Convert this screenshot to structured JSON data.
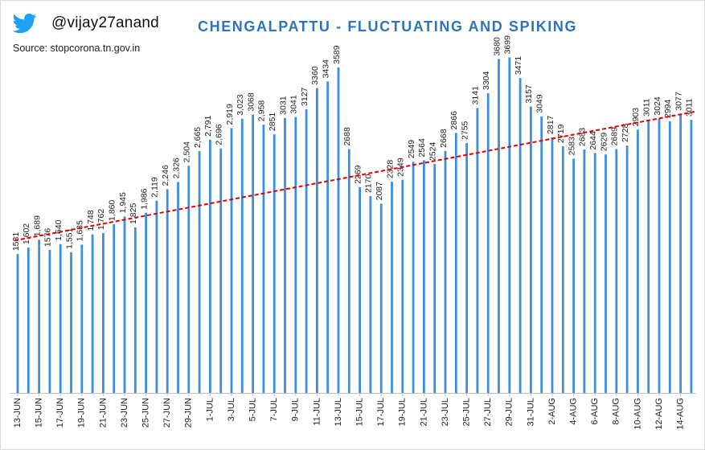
{
  "header": {
    "handle": "@vijay27anand",
    "source": "Source: stopcorona.tn.gov.in",
    "logo_icon": "twitter-bird-icon"
  },
  "colors": {
    "bar": "#3d8fdc",
    "trend": "#e00000",
    "title": "#2e75b6"
  },
  "chart_data": {
    "type": "bar",
    "title": "CHENGALPATTU - FLUCTUATING AND SPIKING",
    "xlabel": "",
    "ylabel": "",
    "ylim": [
      0,
      3800
    ],
    "grid": false,
    "legend": "none",
    "tick_labels": [
      "13-JUN",
      "15-JUN",
      "17-JUN",
      "19-JUN",
      "21-JUN",
      "23-JUN",
      "25-JUN",
      "27-JUN",
      "29-JUN",
      "1-JUL",
      "3-JUL",
      "5-JUL",
      "7-JUL",
      "9-JUL",
      "11-JUL",
      "13-JUL",
      "15-JUL",
      "17-JUL",
      "19-JUL",
      "21-JUL",
      "23-JUL",
      "25-JUL",
      "27-JUL",
      "29-JUL",
      "31-JUL",
      "2-AUG",
      "4-AUG",
      "6-AUG",
      "8-AUG",
      "10-AUG",
      "12-AUG",
      "14-AUG"
    ],
    "data_labels": [
      "1531",
      "1,602",
      "1,689",
      "1576",
      "1,640",
      "1,551",
      "1,635",
      "1,748",
      "1,762",
      "1,860",
      "1,945",
      "1,825",
      "1,986",
      "2,119",
      "2,246",
      "2,326",
      "2,504",
      "2,665",
      "2,791",
      "2,696",
      "2,919",
      "3,023",
      "3068",
      "2,958",
      "2851",
      "3031",
      "3041",
      "3127",
      "3360",
      "3434",
      "3589",
      "2688",
      "2269",
      "2170",
      "2087",
      "2328",
      "2349",
      "2549",
      "2564",
      "2524",
      "2668",
      "2866",
      "2755",
      "3141",
      "3304",
      "3680",
      "3699",
      "3471",
      "3157",
      "3049",
      "2817",
      "2719",
      "2583",
      "2683",
      "2644",
      "2629",
      "2689",
      "2728",
      "2903",
      "3011",
      "3024",
      "2994",
      "3077",
      "3011"
    ],
    "values": [
      1531,
      1602,
      1689,
      1576,
      1640,
      1551,
      1635,
      1748,
      1762,
      1860,
      1945,
      1825,
      1986,
      2119,
      2246,
      2326,
      2504,
      2665,
      2791,
      2696,
      2919,
      3023,
      3068,
      2958,
      2851,
      3031,
      3041,
      3127,
      3360,
      3434,
      3589,
      2688,
      2269,
      2170,
      2087,
      2328,
      2349,
      2549,
      2564,
      2524,
      2668,
      2866,
      2755,
      3141,
      3304,
      3680,
      3699,
      3471,
      3157,
      3049,
      2817,
      2719,
      2583,
      2683,
      2644,
      2629,
      2689,
      2728,
      2903,
      3011,
      3024,
      2994,
      3077,
      3011
    ],
    "trendline": {
      "type": "linear",
      "style": "dashed",
      "start": 1680,
      "end": 3100
    }
  }
}
